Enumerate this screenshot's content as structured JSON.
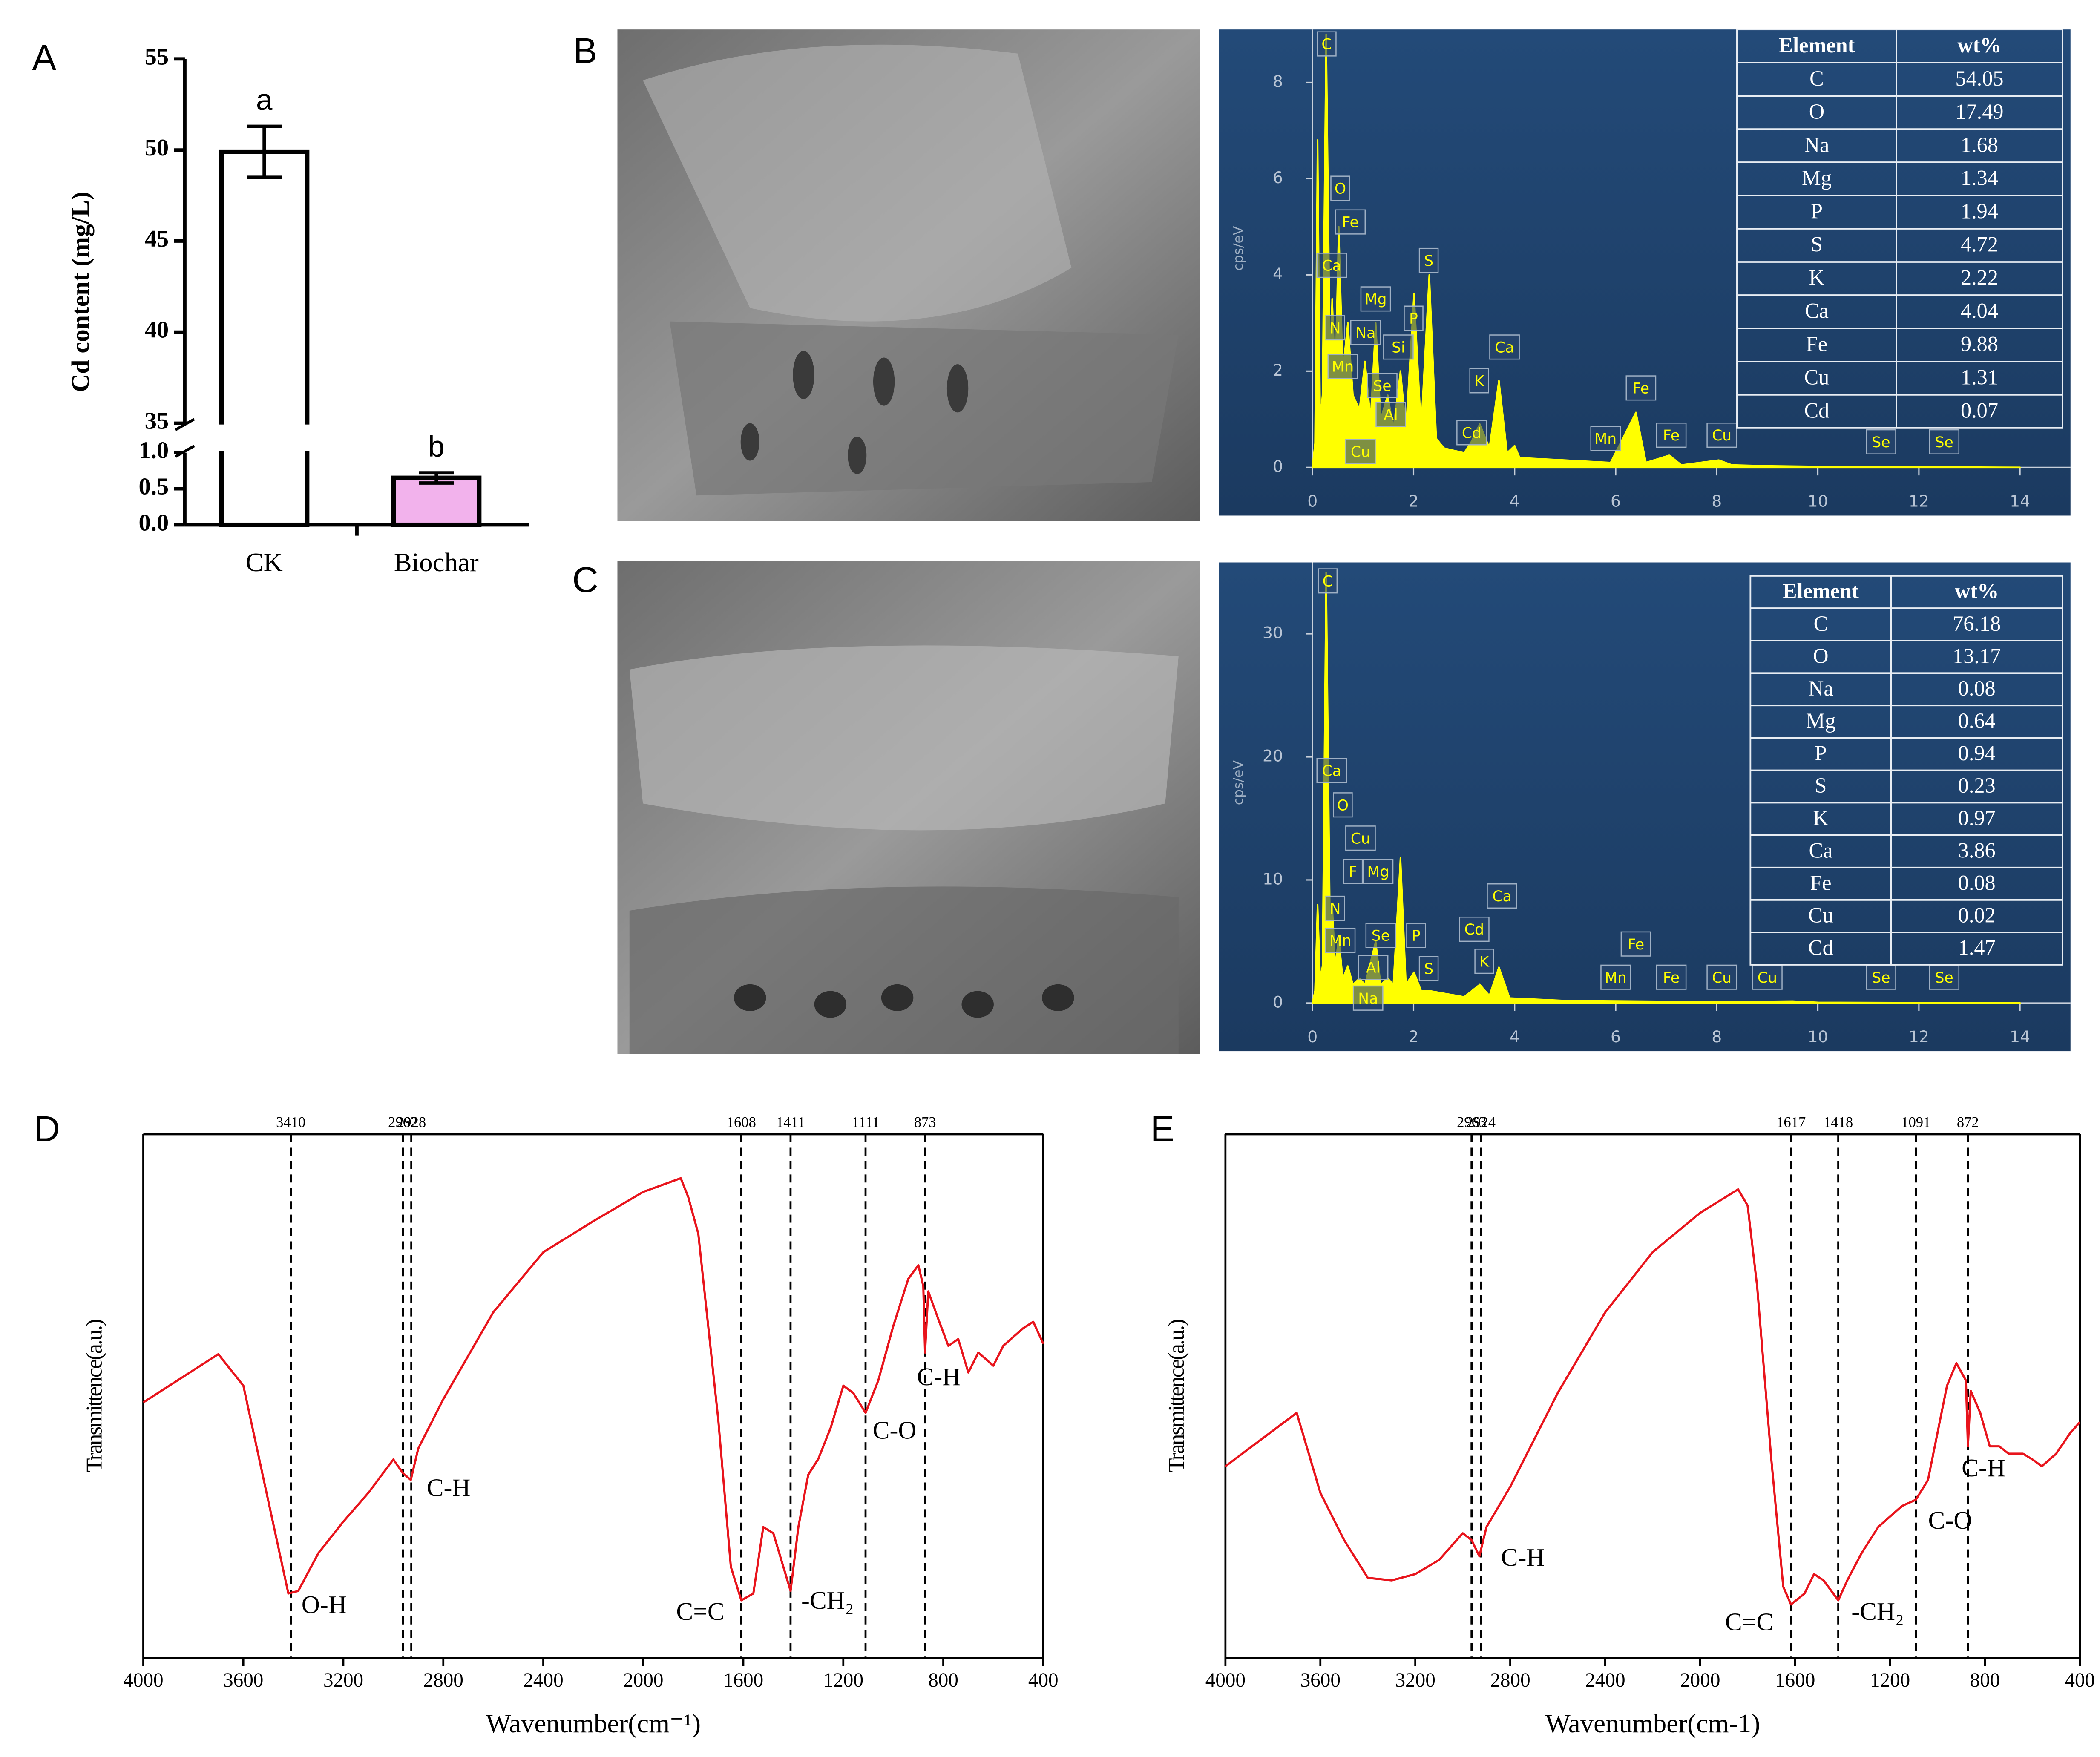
{
  "chart_data": [
    {
      "type": "broken-bar",
      "panel": "A",
      "ylabel": "Cd content (mg/L)",
      "categories": [
        "CK",
        "Biochar"
      ],
      "values": [
        49.9,
        0.65
      ],
      "errors": [
        1.4,
        0.07
      ],
      "significance": [
        "a",
        "b"
      ],
      "colors": [
        "#ffffff",
        "#f2b2ec"
      ],
      "ylim": [
        0,
        55
      ],
      "ybreak": [
        1,
        35
      ],
      "yticks": [
        {
          "value": 0,
          "label": "0.0"
        },
        0.5,
        {
          "value": 1,
          "label": "1.0"
        },
        35,
        40,
        45,
        50,
        55
      ]
    },
    {
      "type": "eds",
      "panel": "B",
      "ylabel": "cps/eV",
      "color": "#ffff00",
      "x": [
        0,
        0.05,
        0.1,
        0.15,
        0.2,
        0.27,
        0.35,
        0.39,
        0.45,
        0.52,
        0.6,
        0.7,
        0.8,
        0.93,
        1.04,
        1.15,
        1.25,
        1.35,
        1.49,
        1.6,
        1.74,
        1.85,
        2.01,
        2.15,
        2.31,
        2.45,
        2.6,
        3.0,
        3.13,
        3.31,
        3.5,
        3.69,
        3.85,
        4.0,
        4.1,
        5,
        5.9,
        6.4,
        6.6,
        7.06,
        7.3,
        8.04,
        8.3,
        9,
        10,
        14
      ],
      "values": [
        0,
        0.5,
        6.8,
        1,
        1.5,
        9.0,
        2.0,
        3.5,
        1.8,
        5.0,
        2.0,
        3.0,
        1.5,
        1.2,
        2.2,
        1.0,
        3.0,
        1.0,
        1.5,
        0.8,
        2.0,
        0.8,
        3.6,
        0.8,
        4.0,
        0.6,
        0.4,
        0.3,
        0.5,
        0.9,
        0.4,
        1.8,
        0.3,
        0.45,
        0.2,
        0.15,
        0.1,
        1.14,
        0.1,
        0.25,
        0.05,
        0.15,
        0.05,
        0.03,
        0.02,
        0
      ],
      "xlim": [
        0,
        15
      ],
      "xticks": [
        0,
        2,
        4,
        6,
        8,
        10,
        12,
        14
      ],
      "ylim": [
        0,
        9.1
      ],
      "yticks": [
        0,
        2,
        4,
        6,
        8
      ],
      "peak_labels": [
        {
          "text": "C",
          "x": 0.28,
          "y": 8.8
        },
        {
          "text": "O",
          "x": 0.55,
          "y": 5.8
        },
        {
          "text": "Fe",
          "x": 0.75,
          "y": 5.1
        },
        {
          "text": "Ca",
          "x": 0.38,
          "y": 4.2
        },
        {
          "text": "Mg",
          "x": 1.25,
          "y": 3.5
        },
        {
          "text": "N",
          "x": 0.45,
          "y": 2.9
        },
        {
          "text": "Na",
          "x": 1.05,
          "y": 2.8
        },
        {
          "text": "S",
          "x": 2.3,
          "y": 4.3
        },
        {
          "text": "P",
          "x": 2.0,
          "y": 3.1
        },
        {
          "text": "Si",
          "x": 1.7,
          "y": 2.5
        },
        {
          "text": "Mn",
          "x": 0.6,
          "y": 2.1
        },
        {
          "text": "Se",
          "x": 1.38,
          "y": 1.7
        },
        {
          "text": "Ca",
          "x": 3.8,
          "y": 2.5
        },
        {
          "text": "K",
          "x": 3.3,
          "y": 1.8
        },
        {
          "text": "Al",
          "x": 1.55,
          "y": 1.1
        },
        {
          "text": "Fe",
          "x": 6.5,
          "y": 1.65
        },
        {
          "text": "Cd",
          "x": 3.15,
          "y": 0.72
        },
        {
          "text": "Cu",
          "x": 0.95,
          "y": 0.33
        },
        {
          "text": "Mn",
          "x": 5.8,
          "y": 0.6
        },
        {
          "text": "Fe",
          "x": 7.1,
          "y": 0.67
        },
        {
          "text": "Cu",
          "x": 8.1,
          "y": 0.67
        },
        {
          "text": "Se",
          "x": 11.25,
          "y": 0.53
        },
        {
          "text": "Se",
          "x": 12.5,
          "y": 0.53
        }
      ],
      "table": {
        "columns": [
          "Element",
          "wt%"
        ],
        "rows": [
          [
            "C",
            54.05
          ],
          [
            "O",
            17.49
          ],
          [
            "Na",
            1.68
          ],
          [
            "Mg",
            1.34
          ],
          [
            "P",
            1.94
          ],
          [
            "S",
            4.72
          ],
          [
            "K",
            2.22
          ],
          [
            "Ca",
            4.04
          ],
          [
            "Fe",
            9.88
          ],
          [
            "Cu",
            1.31
          ],
          [
            "Cd",
            0.07
          ]
        ]
      }
    },
    {
      "type": "eds",
      "panel": "C",
      "ylabel": "cps/eV",
      "color": "#ffff00",
      "x": [
        0,
        0.05,
        0.1,
        0.15,
        0.2,
        0.27,
        0.35,
        0.39,
        0.45,
        0.52,
        0.6,
        0.7,
        0.8,
        0.93,
        1.04,
        1.25,
        1.35,
        1.49,
        1.6,
        1.74,
        1.85,
        2.01,
        2.15,
        2.31,
        3.0,
        3.31,
        3.5,
        3.69,
        3.9,
        5,
        6.4,
        8,
        9.5,
        10,
        14
      ],
      "values": [
        0,
        1,
        8,
        2,
        3,
        35,
        5,
        8,
        3,
        5.3,
        2,
        3,
        1.5,
        2,
        1.5,
        5,
        1.5,
        2,
        1.5,
        11.8,
        1.5,
        2.5,
        1,
        1.0,
        0.5,
        1.5,
        0.6,
        2.9,
        0.4,
        0.2,
        0.15,
        0.1,
        0.15,
        0.05,
        0
      ],
      "xlim": [
        0,
        15
      ],
      "xticks": [
        0,
        2,
        4,
        6,
        8,
        10,
        12,
        14
      ],
      "ylim": [
        0,
        35.8
      ],
      "yticks": [
        0,
        10,
        20,
        30
      ],
      "peak_labels": [
        {
          "text": "C",
          "x": 0.3,
          "y": 34.3
        },
        {
          "text": "Ca",
          "x": 0.38,
          "y": 18.9
        },
        {
          "text": "O",
          "x": 0.6,
          "y": 16.1
        },
        {
          "text": "Cu",
          "x": 0.95,
          "y": 13.4
        },
        {
          "text": "F",
          "x": 0.8,
          "y": 10.7
        },
        {
          "text": "Mg",
          "x": 1.3,
          "y": 10.7
        },
        {
          "text": "N",
          "x": 0.45,
          "y": 7.7
        },
        {
          "text": "Mn",
          "x": 0.55,
          "y": 5.1
        },
        {
          "text": "Se",
          "x": 1.35,
          "y": 5.5
        },
        {
          "text": "P",
          "x": 2.05,
          "y": 5.5
        },
        {
          "text": "Ca",
          "x": 3.75,
          "y": 8.7
        },
        {
          "text": "Cd",
          "x": 3.2,
          "y": 6.0
        },
        {
          "text": "K",
          "x": 3.4,
          "y": 3.4
        },
        {
          "text": "S",
          "x": 2.3,
          "y": 2.8
        },
        {
          "text": "Al",
          "x": 1.2,
          "y": 2.9
        },
        {
          "text": "Na",
          "x": 1.1,
          "y": 0.4
        },
        {
          "text": "Mn",
          "x": 6.0,
          "y": 2.1
        },
        {
          "text": "Fe",
          "x": 6.4,
          "y": 4.8
        },
        {
          "text": "Fe",
          "x": 7.1,
          "y": 2.1
        },
        {
          "text": "Cu",
          "x": 8.1,
          "y": 2.1
        },
        {
          "text": "Cu",
          "x": 9.0,
          "y": 2.1
        },
        {
          "text": "Se",
          "x": 11.25,
          "y": 2.1
        },
        {
          "text": "Se",
          "x": 12.5,
          "y": 2.1
        }
      ],
      "table": {
        "columns": [
          "Element",
          "wt%"
        ],
        "rows": [
          [
            "C",
            76.18
          ],
          [
            "O",
            13.17
          ],
          [
            "Na",
            0.08
          ],
          [
            "Mg",
            0.64
          ],
          [
            "P",
            0.94
          ],
          [
            "S",
            0.23
          ],
          [
            "K",
            0.97
          ],
          [
            "Ca",
            3.86
          ],
          [
            "Fe",
            0.08
          ],
          [
            "Cu",
            0.02
          ],
          [
            "Cd",
            1.47
          ]
        ]
      }
    },
    {
      "type": "ftir",
      "panel": "D",
      "xlabel": "Wavenumber(cm⁻¹)",
      "ylabel": "Transmittence(a.u.)",
      "color": "#e8141c",
      "x": [
        4000,
        3700,
        3600,
        3500,
        3420,
        3380,
        3300,
        3200,
        3100,
        3000,
        2962,
        2930,
        2900,
        2800,
        2600,
        2400,
        2200,
        2000,
        1850,
        1820,
        1780,
        1700,
        1650,
        1608,
        1560,
        1520,
        1480,
        1440,
        1411,
        1380,
        1340,
        1300,
        1250,
        1200,
        1160,
        1111,
        1060,
        1000,
        940,
        900,
        880,
        873,
        860,
        820,
        780,
        740,
        700,
        660,
        600,
        560,
        480,
        440,
        400
      ],
      "values": [
        48.8,
        58,
        52,
        30,
        12.3,
        12.8,
        20,
        26,
        31.5,
        37.9,
        35.3,
        34,
        40,
        49.4,
        66,
        77.5,
        83.4,
        89,
        91.6,
        88,
        81,
        45.5,
        17.4,
        11,
        12.3,
        25,
        23.8,
        17.4,
        12.8,
        25,
        35,
        38,
        44,
        52,
        50.6,
        46.8,
        53,
        63.4,
        72.4,
        75,
        71,
        58.3,
        70,
        64.7,
        59.6,
        60.9,
        54.5,
        58.3,
        55.8,
        59.6,
        63,
        64.2,
        60
      ],
      "xlim": [
        4000,
        400
      ],
      "xticks": [
        4000,
        3600,
        3200,
        2800,
        2400,
        2000,
        1600,
        1200,
        800,
        400
      ],
      "ylim": [
        0,
        100
      ],
      "peaks": [
        3410,
        2962,
        2928,
        1608,
        1411,
        1111,
        873
      ],
      "annotations": [
        {
          "text": "O-H",
          "x": 3277,
          "y": 9.7
        },
        {
          "text": "C-H",
          "x": 2779,
          "y": 32
        },
        {
          "text": "C=C",
          "x": 1772,
          "y": 8.4
        },
        {
          "text": "-CH₂",
          "x": 1263,
          "y": 10.5
        },
        {
          "text": "C-O",
          "x": 995,
          "y": 43
        },
        {
          "text": "C-H",
          "x": 818,
          "y": 53.2
        }
      ]
    },
    {
      "type": "ftir",
      "panel": "E",
      "xlabel": "Wavenumber(cm-1)",
      "ylabel": "Transmittence(a.u.)",
      "color": "#e8141c",
      "x": [
        4000,
        3700,
        3600,
        3500,
        3400,
        3300,
        3200,
        3100,
        3000,
        2963,
        2930,
        2900,
        2800,
        2600,
        2400,
        2200,
        2000,
        1840,
        1800,
        1760,
        1700,
        1650,
        1617,
        1560,
        1520,
        1480,
        1418,
        1380,
        1320,
        1250,
        1150,
        1091,
        1040,
        960,
        920,
        880,
        872,
        860,
        820,
        780,
        740,
        700,
        640,
        600,
        560,
        500,
        440,
        400
      ],
      "values": [
        36.6,
        46.8,
        31.5,
        22.5,
        15.3,
        14.8,
        16,
        18.7,
        23.8,
        22.5,
        19.4,
        25,
        32.7,
        50.6,
        66,
        77.5,
        85,
        89.5,
        86.4,
        71,
        37.9,
        13.6,
        10.2,
        12.3,
        16,
        14.8,
        11,
        14.8,
        20,
        25,
        29,
        30.2,
        34,
        52,
        56.3,
        53,
        40.4,
        51,
        46.8,
        40.4,
        40.4,
        39,
        39,
        37.9,
        36.6,
        39,
        43,
        45
      ],
      "xlim": [
        4000,
        400
      ],
      "xticks": [
        4000,
        3600,
        3200,
        2800,
        2400,
        2000,
        1600,
        1200,
        800,
        400
      ],
      "ylim": [
        0,
        100
      ],
      "peaks": [
        2963,
        2924,
        1617,
        1418,
        1091,
        872
      ],
      "annotations": [
        {
          "text": "C-H",
          "x": 2747,
          "y": 18.7
        },
        {
          "text": "C=C",
          "x": 1793,
          "y": 6.4
        },
        {
          "text": "-CH₂",
          "x": 1252,
          "y": 8.4
        },
        {
          "text": "C-O",
          "x": 947,
          "y": 25.8
        },
        {
          "text": "C-H",
          "x": 806,
          "y": 35.8
        }
      ]
    }
  ]
}
